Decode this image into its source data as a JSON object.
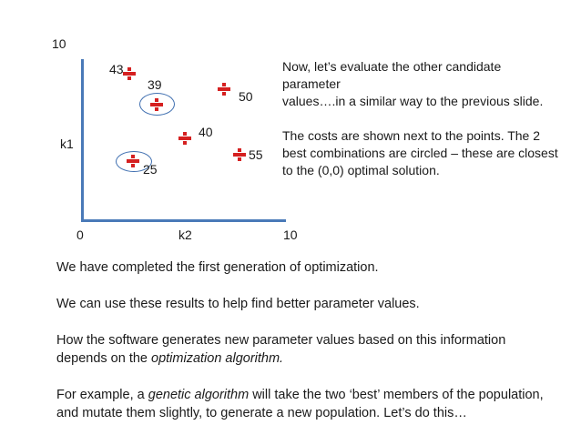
{
  "plot": {
    "y_max_label": "10",
    "y_axis_label": "k1",
    "x_origin_label": "0",
    "x_axis_label": "k2",
    "x_max_label": "10",
    "points": [
      {
        "cost": "43"
      },
      {
        "cost": "39"
      },
      {
        "cost": "50"
      },
      {
        "cost": "40"
      },
      {
        "cost": "55"
      },
      {
        "cost": "25"
      }
    ],
    "marker_color": "#d52020",
    "axis_color": "#4a7ab8"
  },
  "note": {
    "line1": "Now, let’s evaluate the  other candidate",
    "line2": "parameter",
    "line3": "values….in  a similar way  to the previous slide.",
    "line4": "The costs are shown next to the points. The 2",
    "line5": "best combinations are circled – these are closest",
    "line6": "to the (0,0) optimal solution."
  },
  "body": {
    "p1": "We have completed the first generation of optimization.",
    "p2": "We can use these results to help find better parameter values.",
    "p3_line1": "How the software generates new parameter values based on this information",
    "p3_line2_pre": "depends on the ",
    "p3_line2_em": "optimization algorithm.",
    "p4_pre": "For example, a ",
    "p4_em": "genetic algorithm",
    "p4_post": " will take the two ‘best’ members  of the population,",
    "p4_line2": " and mutate them slightly, to generate a new population. Let’s do this…"
  }
}
